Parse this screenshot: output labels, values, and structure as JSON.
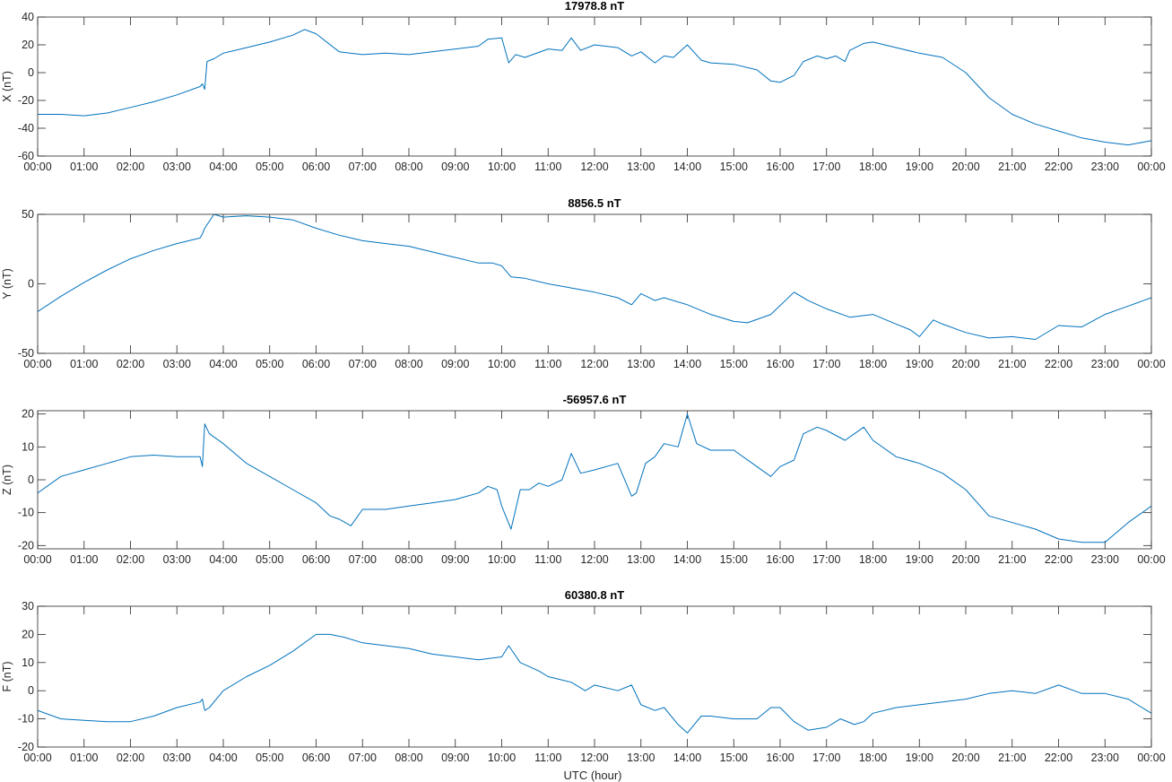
{
  "figure": {
    "xlabel": "UTC (hour)",
    "line_color": "#0072BD"
  },
  "chart_data": [
    {
      "type": "line",
      "title": "17978.8 nT",
      "xlabel": "",
      "ylabel": "X (nT)",
      "xlim": [
        0,
        24
      ],
      "ylim": [
        -60,
        40
      ],
      "yticks": [
        -60,
        -40,
        -20,
        0,
        20,
        40
      ],
      "xticks": [
        "00:00",
        "01:00",
        "02:00",
        "03:00",
        "04:00",
        "05:00",
        "06:00",
        "07:00",
        "08:00",
        "09:00",
        "10:00",
        "11:00",
        "12:00",
        "13:00",
        "14:00",
        "15:00",
        "16:00",
        "17:00",
        "18:00",
        "19:00",
        "20:00",
        "21:00",
        "22:00",
        "23:00",
        "00:00"
      ],
      "grid": false,
      "series": [
        {
          "x": [
            0,
            0.5,
            1,
            1.5,
            2,
            2.5,
            3,
            3.5,
            3.55,
            3.6,
            3.65,
            3.8,
            4,
            4.5,
            5,
            5.5,
            5.75,
            6,
            6.5,
            7,
            7.5,
            8,
            8.5,
            9,
            9.5,
            9.7,
            10,
            10.15,
            10.3,
            10.5,
            11,
            11.3,
            11.5,
            11.7,
            12,
            12.5,
            12.8,
            13,
            13.3,
            13.5,
            13.7,
            14,
            14.3,
            14.5,
            15,
            15.5,
            15.8,
            16,
            16.3,
            16.5,
            16.8,
            17,
            17.2,
            17.4,
            17.5,
            17.8,
            18,
            18.5,
            19,
            19.5,
            20,
            20.5,
            21,
            21.5,
            22,
            22.5,
            23,
            23.5,
            24
          ],
          "y": [
            -30,
            -30,
            -31,
            -29,
            -25,
            -21,
            -16,
            -10,
            -8,
            -12,
            8,
            10,
            14,
            18,
            22,
            27,
            31,
            28,
            15,
            13,
            14,
            13,
            15,
            17,
            19,
            24,
            25,
            7,
            13,
            11,
            17,
            16,
            25,
            16,
            20,
            18,
            12,
            15,
            7,
            12,
            11,
            20,
            9,
            7,
            6,
            2,
            -6,
            -7,
            -2,
            8,
            12,
            10,
            12,
            8,
            16,
            21,
            22,
            18,
            14,
            11,
            0,
            -18,
            -30,
            -37,
            -42,
            -47,
            -50,
            -52,
            -49
          ]
        }
      ]
    },
    {
      "type": "line",
      "title": "8856.5 nT",
      "xlabel": "",
      "ylabel": "Y (nT)",
      "xlim": [
        0,
        24
      ],
      "ylim": [
        -50,
        50
      ],
      "yticks": [
        -50,
        0,
        50
      ],
      "xticks": [
        "00:00",
        "01:00",
        "02:00",
        "03:00",
        "04:00",
        "05:00",
        "06:00",
        "07:00",
        "08:00",
        "09:00",
        "10:00",
        "11:00",
        "12:00",
        "13:00",
        "14:00",
        "15:00",
        "16:00",
        "17:00",
        "18:00",
        "19:00",
        "20:00",
        "21:00",
        "22:00",
        "23:00",
        "00:00"
      ],
      "grid": false,
      "series": [
        {
          "x": [
            0,
            0.5,
            1,
            1.5,
            2,
            2.5,
            3,
            3.5,
            3.55,
            3.6,
            3.8,
            4,
            4.5,
            5,
            5.5,
            6,
            6.5,
            7,
            7.5,
            8,
            8.5,
            9,
            9.5,
            9.8,
            10,
            10.2,
            10.5,
            11,
            11.5,
            12,
            12.5,
            12.8,
            13,
            13.3,
            13.5,
            14,
            14.5,
            15,
            15.3,
            15.8,
            16.3,
            16.6,
            17,
            17.5,
            18,
            18.5,
            18.8,
            19,
            19.3,
            19.5,
            20,
            20.5,
            21,
            21.5,
            22,
            22.5,
            23,
            23.5,
            24
          ],
          "y": [
            -20,
            -9,
            1,
            10,
            18,
            24,
            29,
            33,
            36,
            40,
            50,
            48,
            49,
            48,
            46,
            40,
            35,
            31,
            29,
            27,
            23,
            19,
            15,
            15,
            13,
            5,
            4,
            0,
            -3,
            -6,
            -10,
            -15,
            -7,
            -12,
            -10,
            -15,
            -22,
            -27,
            -28,
            -22,
            -6,
            -12,
            -18,
            -24,
            -22,
            -29,
            -33,
            -38,
            -26,
            -29,
            -35,
            -39,
            -38,
            -40,
            -30,
            -31,
            -22,
            -16,
            -10
          ]
        }
      ]
    },
    {
      "type": "line",
      "title": "-56957.6 nT",
      "xlabel": "",
      "ylabel": "Z (nT)",
      "xlim": [
        0,
        24
      ],
      "ylim": [
        -21,
        21
      ],
      "yticks": [
        -20,
        -10,
        0,
        10,
        20
      ],
      "xticks": [
        "00:00",
        "01:00",
        "02:00",
        "03:00",
        "04:00",
        "05:00",
        "06:00",
        "07:00",
        "08:00",
        "09:00",
        "10:00",
        "11:00",
        "12:00",
        "13:00",
        "14:00",
        "15:00",
        "16:00",
        "17:00",
        "18:00",
        "19:00",
        "20:00",
        "21:00",
        "22:00",
        "23:00",
        "00:00"
      ],
      "grid": false,
      "series": [
        {
          "x": [
            0,
            0.5,
            1,
            1.5,
            2,
            2.5,
            3,
            3.5,
            3.55,
            3.6,
            3.7,
            4,
            4.5,
            5,
            5.5,
            6,
            6.3,
            6.5,
            6.75,
            7,
            7.5,
            8,
            8.5,
            9,
            9.5,
            9.7,
            9.9,
            10,
            10.2,
            10.4,
            10.6,
            10.8,
            11,
            11.3,
            11.5,
            11.7,
            12,
            12.5,
            12.8,
            12.9,
            13.1,
            13.3,
            13.5,
            13.8,
            14,
            14.2,
            14.5,
            15,
            15.5,
            15.8,
            16,
            16.3,
            16.5,
            16.8,
            17,
            17.4,
            17.6,
            17.8,
            18,
            18.5,
            19,
            19.5,
            20,
            20.5,
            21,
            21.5,
            22,
            22.5,
            23,
            23.5,
            24
          ],
          "y": [
            -4,
            1,
            3,
            5,
            7,
            7.5,
            7,
            7,
            4,
            17,
            14,
            11,
            5,
            1,
            -3,
            -7,
            -11,
            -12,
            -14,
            -9,
            -9,
            -8,
            -7,
            -6,
            -4,
            -2,
            -3,
            -8,
            -15,
            -3,
            -3,
            -1,
            -2,
            0,
            8,
            2,
            3,
            5,
            -5,
            -4,
            5,
            7,
            11,
            10,
            20,
            11,
            9,
            9,
            4,
            1,
            4,
            6,
            14,
            16,
            15,
            12,
            14,
            16,
            12,
            7,
            5,
            2,
            -3,
            -11,
            -13,
            -15,
            -18,
            -19,
            -19,
            -13,
            -8
          ]
        }
      ]
    },
    {
      "type": "line",
      "title": "60380.8 nT",
      "xlabel": "UTC (hour)",
      "ylabel": "F (nT)",
      "xlim": [
        0,
        24
      ],
      "ylim": [
        -20,
        30
      ],
      "yticks": [
        -20,
        -10,
        0,
        10,
        20,
        30
      ],
      "xticks": [
        "00:00",
        "01:00",
        "02:00",
        "03:00",
        "04:00",
        "05:00",
        "06:00",
        "07:00",
        "08:00",
        "09:00",
        "10:00",
        "11:00",
        "12:00",
        "13:00",
        "14:00",
        "15:00",
        "16:00",
        "17:00",
        "18:00",
        "19:00",
        "20:00",
        "21:00",
        "22:00",
        "23:00",
        "00:00"
      ],
      "grid": false,
      "series": [
        {
          "x": [
            0,
            0.5,
            1,
            1.5,
            2,
            2.5,
            3,
            3.5,
            3.55,
            3.6,
            3.7,
            4,
            4.5,
            5,
            5.5,
            6,
            6.3,
            6.6,
            7,
            7.5,
            8,
            8.5,
            9,
            9.5,
            10,
            10.15,
            10.4,
            10.8,
            11,
            11.5,
            11.8,
            12,
            12.5,
            12.8,
            13,
            13.3,
            13.5,
            13.8,
            14,
            14.3,
            14.5,
            15,
            15.5,
            15.8,
            16,
            16.3,
            16.6,
            17,
            17.3,
            17.6,
            17.8,
            18,
            18.5,
            19,
            19.5,
            20,
            20.5,
            21,
            21.5,
            22,
            22.5,
            23,
            23.5,
            24
          ],
          "y": [
            -7,
            -10,
            -10.5,
            -11,
            -11,
            -9,
            -6,
            -4,
            -3,
            -7,
            -6,
            0,
            5,
            9,
            14,
            20,
            20,
            19,
            17,
            16,
            15,
            13,
            12,
            11,
            12,
            16,
            10,
            7,
            5,
            3,
            0,
            2,
            0,
            2,
            -5,
            -7,
            -6,
            -12,
            -15,
            -9,
            -9,
            -10,
            -10,
            -6,
            -6,
            -11,
            -14,
            -13,
            -10,
            -12,
            -11,
            -8,
            -6,
            -5,
            -4,
            -3,
            -1,
            0,
            -1,
            2,
            -1,
            -1,
            -3,
            -8
          ]
        }
      ]
    }
  ]
}
